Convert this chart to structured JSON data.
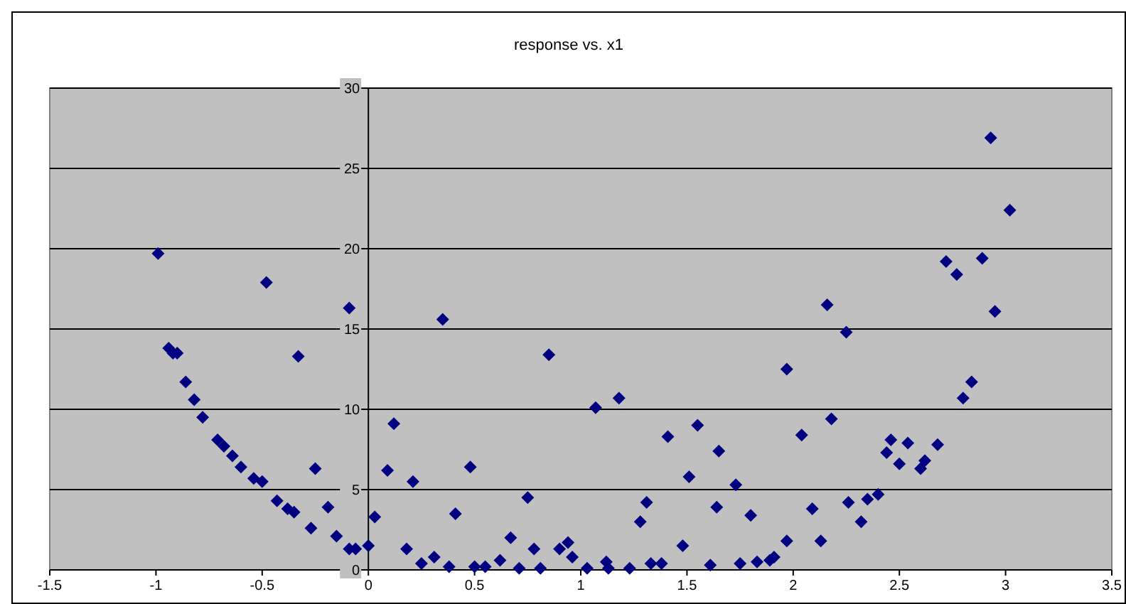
{
  "chart_data": {
    "type": "scatter",
    "title": "response vs. x1",
    "marker": "diamond",
    "grid": "y",
    "xlim": [
      -1.5,
      3.5
    ],
    "xticks": [
      -1.5,
      -1,
      -0.5,
      0,
      0.5,
      1,
      1.5,
      2,
      2.5,
      3,
      3.5
    ],
    "ylim": [
      0,
      30
    ],
    "yticks": [
      0,
      5,
      10,
      15,
      20,
      25,
      30
    ],
    "series": [
      {
        "color": "#000080",
        "x": [
          -0.99,
          -0.94,
          -0.92,
          -0.9,
          -0.86,
          -0.82,
          -0.78,
          -0.71,
          -0.68,
          -0.64,
          -0.6,
          -0.54,
          -0.5,
          -0.48,
          -0.43,
          -0.38,
          -0.35,
          -0.33,
          -0.27,
          -0.25,
          -0.19,
          -0.15,
          -0.09,
          -0.09,
          -0.06,
          0.0,
          0.03,
          0.09,
          0.12,
          0.18,
          0.21,
          0.25,
          0.31,
          0.35,
          0.38,
          0.41,
          0.48,
          0.5,
          0.55,
          0.62,
          0.67,
          0.71,
          0.75,
          0.78,
          0.81,
          0.85,
          0.9,
          0.94,
          0.96,
          1.03,
          1.07,
          1.12,
          1.13,
          1.18,
          1.23,
          1.28,
          1.31,
          1.33,
          1.38,
          1.41,
          1.48,
          1.51,
          1.55,
          1.61,
          1.64,
          1.65,
          1.73,
          1.75,
          1.8,
          1.83,
          1.89,
          1.91,
          1.97,
          1.97,
          2.04,
          2.09,
          2.13,
          2.16,
          2.18,
          2.25,
          2.26,
          2.32,
          2.35,
          2.4,
          2.44,
          2.46,
          2.5,
          2.54,
          2.6,
          2.62,
          2.68,
          2.72,
          2.77,
          2.8,
          2.84,
          2.89,
          2.93,
          2.95,
          3.02
        ],
        "values": [
          19.7,
          13.8,
          13.5,
          13.5,
          11.7,
          10.6,
          9.5,
          8.1,
          7.7,
          7.1,
          6.4,
          5.7,
          5.5,
          17.9,
          4.3,
          3.8,
          3.6,
          13.3,
          2.6,
          6.3,
          3.9,
          2.1,
          16.3,
          1.3,
          1.3,
          1.5,
          3.3,
          6.2,
          9.1,
          1.3,
          5.5,
          0.4,
          0.8,
          15.6,
          0.2,
          3.5,
          6.4,
          0.2,
          0.2,
          0.6,
          2.0,
          0.1,
          4.5,
          1.3,
          0.1,
          13.4,
          1.3,
          1.7,
          0.8,
          0.1,
          10.1,
          0.5,
          0.1,
          10.7,
          0.1,
          3.0,
          4.2,
          0.4,
          0.4,
          8.3,
          1.5,
          5.8,
          9.0,
          0.3,
          3.9,
          7.4,
          5.3,
          0.4,
          3.4,
          0.5,
          0.6,
          0.8,
          12.5,
          1.8,
          8.4,
          3.8,
          1.8,
          16.5,
          9.4,
          14.8,
          4.2,
          3.0,
          4.4,
          4.7,
          7.3,
          8.1,
          6.6,
          7.9,
          6.3,
          6.8,
          7.8,
          19.2,
          18.4,
          10.7,
          11.7,
          19.4,
          26.9,
          16.1,
          22.4
        ]
      }
    ]
  }
}
